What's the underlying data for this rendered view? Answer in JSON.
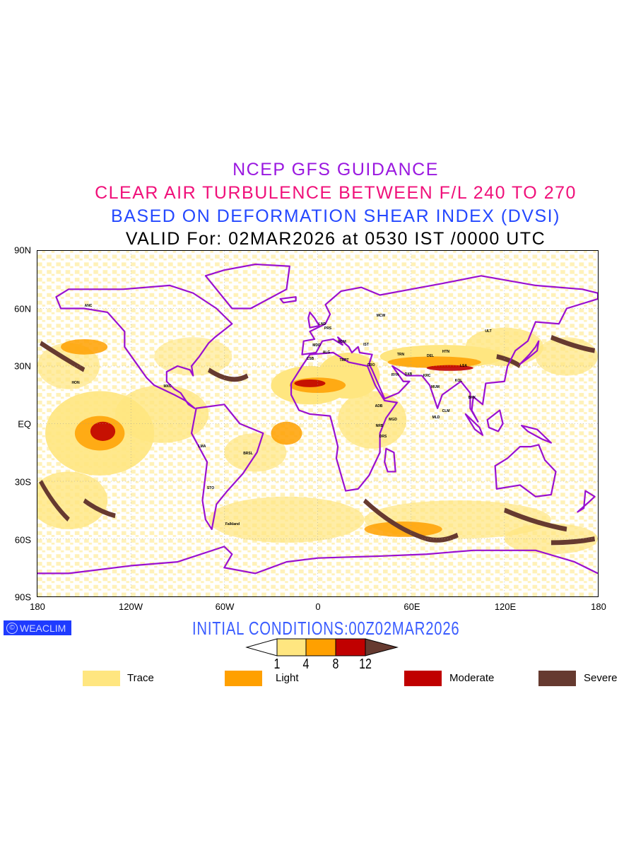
{
  "titles": {
    "line1": "NCEP GFS GUIDANCE",
    "line2": "CLEAR AIR TURBULENCE BETWEEN F/L 240 TO 270",
    "line3": "BASED ON DEFORMATION SHEAR INDEX (DVSI)",
    "line4": "VALID For: 02MAR2026 at 0530 IST /0000 UTC"
  },
  "axes": {
    "lat_labels": [
      "90N",
      "60N",
      "30N",
      "EQ",
      "30S",
      "60S",
      "90S"
    ],
    "lon_labels": [
      "180",
      "120W",
      "60W",
      "0",
      "60E",
      "120E",
      "180"
    ]
  },
  "stations": [
    "MCW",
    "LND",
    "PRS",
    "MDD",
    "ROM",
    "IST",
    "ALG",
    "CSB",
    "TRPT",
    "CRO",
    "RYH",
    "DXB",
    "KRC",
    "DEL",
    "MUM",
    "KOL",
    "CLM",
    "MLD",
    "ADB",
    "NRB",
    "MGD",
    "DRS",
    "LSA",
    "ULT",
    "BKK",
    "HTN",
    "TRN",
    "ANC",
    "MXC",
    "HON",
    "LMA",
    "BRSL",
    "STO",
    "Falkland"
  ],
  "logo": {
    "symbol": "©",
    "text": "WEACLIM"
  },
  "initial_conditions": "INITIAL CONDITIONS:00Z02MAR2026",
  "colorbar": {
    "ticks": [
      "1",
      "4",
      "8",
      "12"
    ],
    "colors": [
      "#ffe680",
      "#ffa000",
      "#c00000",
      "#663a30"
    ]
  },
  "legend": [
    {
      "label": "Trace",
      "color": "#ffe680"
    },
    {
      "label": "Light",
      "color": "#ffa000"
    },
    {
      "label": "Moderate",
      "color": "#c00000"
    },
    {
      "label": "Severe",
      "color": "#663a30"
    }
  ]
}
